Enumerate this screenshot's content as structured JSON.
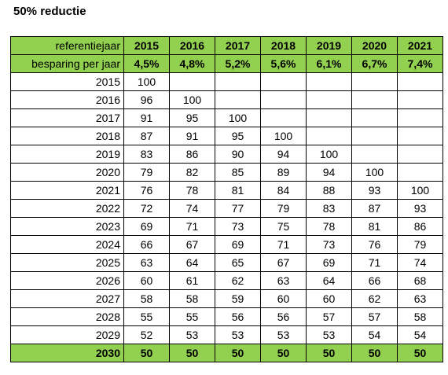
{
  "title": "50% reductie",
  "years": [
    "2015",
    "2016",
    "2017",
    "2018",
    "2019",
    "2020",
    "2021"
  ],
  "header_label": "referentiejaar",
  "savings_label": "besparing per jaar",
  "savings": [
    "4,5%",
    "4,8%",
    "5,2%",
    "5,6%",
    "6,1%",
    "6,7%",
    "7,4%"
  ],
  "rows": [
    {
      "year": "2015",
      "values": [
        "100",
        "",
        "",
        "",
        "",
        "",
        ""
      ]
    },
    {
      "year": "2016",
      "values": [
        "96",
        "100",
        "",
        "",
        "",
        "",
        ""
      ]
    },
    {
      "year": "2017",
      "values": [
        "91",
        "95",
        "100",
        "",
        "",
        "",
        ""
      ]
    },
    {
      "year": "2018",
      "values": [
        "87",
        "91",
        "95",
        "100",
        "",
        "",
        ""
      ]
    },
    {
      "year": "2019",
      "values": [
        "83",
        "86",
        "90",
        "94",
        "100",
        "",
        ""
      ]
    },
    {
      "year": "2020",
      "values": [
        "79",
        "82",
        "85",
        "89",
        "94",
        "100",
        ""
      ]
    },
    {
      "year": "2021",
      "values": [
        "76",
        "78",
        "81",
        "84",
        "88",
        "93",
        "100"
      ]
    },
    {
      "year": "2022",
      "values": [
        "72",
        "74",
        "77",
        "79",
        "83",
        "87",
        "93"
      ]
    },
    {
      "year": "2023",
      "values": [
        "69",
        "71",
        "73",
        "75",
        "78",
        "81",
        "86"
      ]
    },
    {
      "year": "2024",
      "values": [
        "66",
        "67",
        "69",
        "71",
        "73",
        "76",
        "79"
      ]
    },
    {
      "year": "2025",
      "values": [
        "63",
        "64",
        "65",
        "67",
        "69",
        "71",
        "74"
      ]
    },
    {
      "year": "2026",
      "values": [
        "60",
        "61",
        "62",
        "63",
        "64",
        "66",
        "68"
      ]
    },
    {
      "year": "2027",
      "values": [
        "58",
        "58",
        "59",
        "60",
        "60",
        "62",
        "63"
      ]
    },
    {
      "year": "2028",
      "values": [
        "55",
        "55",
        "56",
        "56",
        "57",
        "57",
        "58"
      ]
    },
    {
      "year": "2029",
      "values": [
        "52",
        "53",
        "53",
        "53",
        "53",
        "54",
        "54"
      ]
    }
  ],
  "total_row": {
    "year": "2030",
    "values": [
      "50",
      "50",
      "50",
      "50",
      "50",
      "50",
      "50"
    ]
  },
  "colors": {
    "highlight_green": "#92d050"
  }
}
